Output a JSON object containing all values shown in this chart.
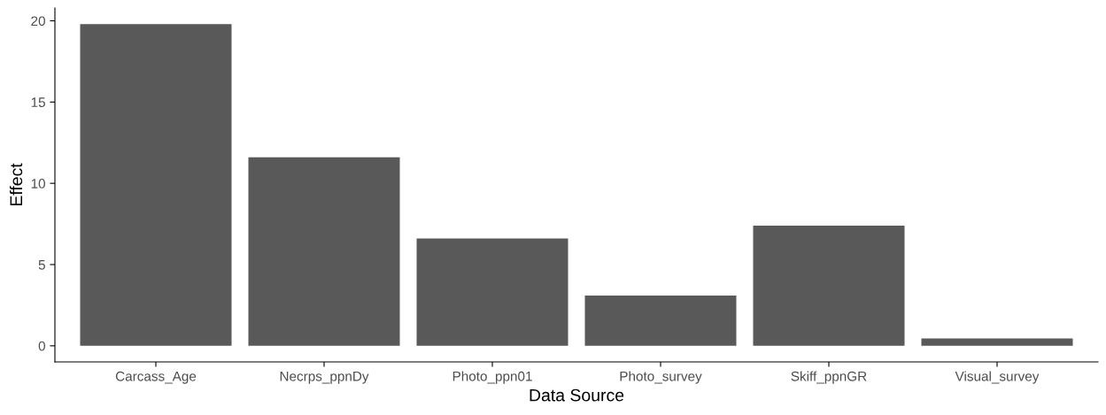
{
  "chart_data": {
    "type": "bar",
    "xlabel": "Data Source",
    "ylabel": "Effect",
    "categories": [
      "Carcass_Age",
      "Necrps_ppnDy",
      "Photo_ppn01",
      "Photo_survey",
      "Skiff_ppnGR",
      "Visual_survey"
    ],
    "values": [
      19.8,
      11.6,
      6.6,
      3.1,
      7.4,
      0.45
    ],
    "color": "#595959",
    "ylim": [
      -0.99,
      20.79
    ],
    "yticks": [
      0,
      5,
      10,
      15,
      20
    ],
    "grid": false
  }
}
